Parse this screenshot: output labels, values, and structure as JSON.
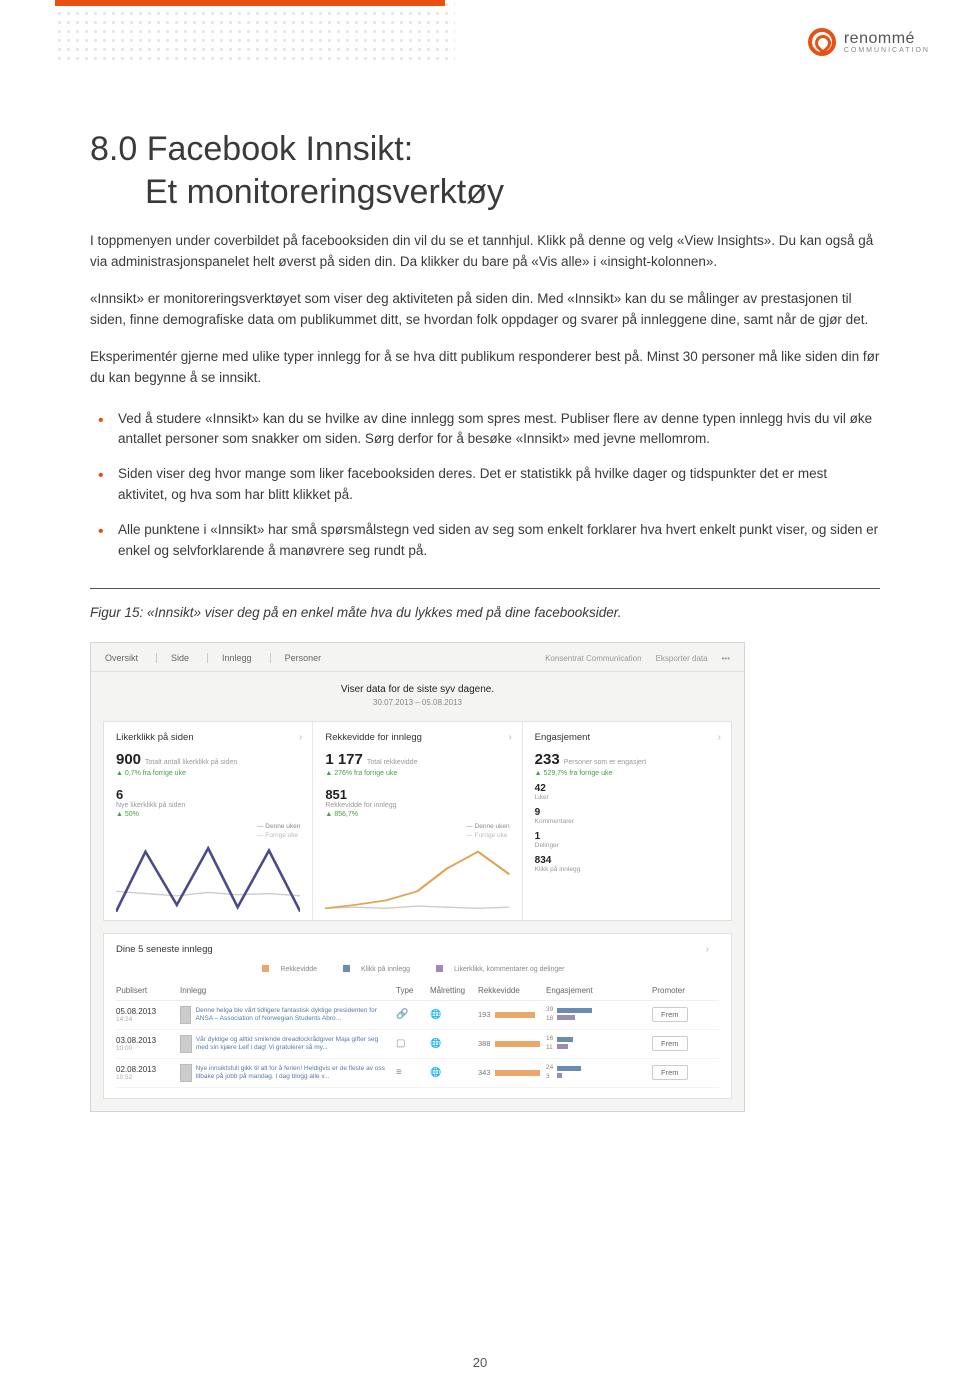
{
  "brand": {
    "name": "renommé",
    "sub": "COMMUNICATION"
  },
  "heading": {
    "line1": "8.0 Facebook Innsikt:",
    "line2": "Et monitoreringsverktøy"
  },
  "para1": "I toppmenyen under coverbildet på facebooksiden din vil du se et tannhjul. Klikk på denne og velg «View Insights». Du kan også gå via administrasjonspanelet helt øverst på siden din. Da klikker du bare på «Vis alle» i «insight-kolonnen».",
  "para2": "«Innsikt» er monitoreringsverktøyet som viser deg aktiviteten på siden din. Med «Innsikt» kan du se målinger av prestasjonen til siden, finne demografiske data om publikummet ditt, se hvordan folk oppdager og svarer på innleggene dine, samt når de gjør det.",
  "para3": "Eksperimentér gjerne med ulike typer innlegg for å se hva ditt publikum responderer best på. Minst 30 personer må like siden din før du kan begynne å se innsikt.",
  "bullets": [
    "Ved å studere «Innsikt» kan du se hvilke av dine innlegg som spres mest. Publiser flere av denne typen innlegg hvis du vil øke antallet personer som snakker om siden. Sørg derfor for å besøke «Innsikt» med jevne mellomrom.",
    "Siden viser deg hvor mange som liker facebooksiden deres. Det er statistikk på hvilke dager og tidspunkter det er mest aktivitet, og hva som har blitt klikket på.",
    "Alle punktene i «Innsikt» har små spørsmålstegn ved siden av seg som enkelt forklarer hva hvert enkelt punkt viser, og siden er enkel og selvforklarende å manøvrere seg rundt på."
  ],
  "fig_caption": "Figur 15: «Innsikt» viser deg på en enkel måte hva du lykkes med på dine facebooksider.",
  "dash": {
    "tabs": [
      "Oversikt",
      "Side",
      "Innlegg",
      "Personer"
    ],
    "right": [
      "Konsentrat Communication",
      "Eksporter data",
      "•••"
    ],
    "subtitle": "Viser data for de siste syv dagene.",
    "daterange": "30.07.2013 – 05.08.2013",
    "cols": [
      {
        "title": "Likerklikk på siden",
        "big": "900",
        "big_desc": "Totalt antall likerklikk på siden",
        "delta": "▲ 0,7% fra forrige uke",
        "mid": "6",
        "mid_desc": "Nye likerklikk på siden",
        "mid_delta": "▲ 50%",
        "legend": [
          "Denne uken",
          "Forrige uke"
        ],
        "chart": {
          "type": "line",
          "colors": [
            "#4a4a8a",
            "#cccccc"
          ],
          "series1": [
            0,
            55,
            10,
            60,
            8,
            58,
            0
          ],
          "series2": [
            20,
            22,
            18,
            25,
            20,
            23,
            19
          ]
        }
      },
      {
        "title": "Rekkevidde for innlegg",
        "big": "1 177",
        "big_desc": "Total rekkevidde",
        "delta": "▲ 276% fra forrige uke",
        "mid": "851",
        "mid_desc": "Rekkevidde for innlegg",
        "mid_delta": "▲ 856,7%",
        "legend": [
          "Denne uken",
          "Forrige uke"
        ],
        "chart": {
          "type": "line",
          "colors": [
            "#e2a354",
            "#cccccc"
          ],
          "series1": [
            5,
            8,
            12,
            20,
            40,
            55,
            35
          ],
          "series2": [
            5,
            6,
            5,
            7,
            6,
            5,
            6
          ]
        }
      },
      {
        "title": "Engasjement",
        "big": "233",
        "big_desc": "Personer som er engasjert",
        "delta": "▲ 529,7% fra forrige uke",
        "rows": [
          {
            "n": "42",
            "l": "Liker"
          },
          {
            "n": "9",
            "l": "Kommentarer"
          },
          {
            "n": "1",
            "l": "Delinger"
          },
          {
            "n": "834",
            "l": "Klikk på innlegg"
          }
        ]
      }
    ],
    "posts_title": "Dine 5 seneste innlegg",
    "legend_items": [
      "Rekkevidde",
      "Klikk på innlegg",
      "Likerklikk, kommentarer og delinger"
    ],
    "head": [
      "Publisert",
      "Innlegg",
      "Type",
      "Målretting",
      "Rekkevidde",
      "Engasjement",
      "Promoter"
    ],
    "rows": [
      {
        "date": "05.08.2013",
        "time": "14:24",
        "text": "Denne helga ble vårt tidligere fantastisk dyktige presidenten for ANSA – Association of Norwegian Students Abro...",
        "type_icon": "link",
        "reach": 193,
        "reach_w": 40,
        "e1": 39,
        "e2": 18,
        "e1w": 35,
        "e2w": 18,
        "btn": "Frem"
      },
      {
        "date": "03.08.2013",
        "time": "10:00",
        "text": "Vår dyktige og alltid smilende dreadlockrådgiver Maja gifter seg med sin kjære Leif i dag! Vi gratulerer så my...",
        "type_icon": "photo",
        "reach": 388,
        "reach_w": 70,
        "e1": 16,
        "e2": 11,
        "e1w": 16,
        "e2w": 11,
        "btn": "Frem"
      },
      {
        "date": "02.08.2013",
        "time": "10:52",
        "text": "Nye innsiktsfull gikk til alt for å ferien! Heldigvis er de fleste av oss tilbake på jobb på mandag. I dag blogg alle v...",
        "type_icon": "status",
        "reach": 343,
        "reach_w": 62,
        "e1": 24,
        "e2": 3,
        "e1w": 24,
        "e2w": 5,
        "btn": "Frem"
      }
    ]
  },
  "pagenum": "20",
  "colors": {
    "accent": "#e75113",
    "line_purple": "#4a4a8a",
    "line_orange": "#e2a354",
    "bar_orange": "#e9a869",
    "bar_blue": "#6a8bb5",
    "bar_purple": "#9b8bb5"
  }
}
